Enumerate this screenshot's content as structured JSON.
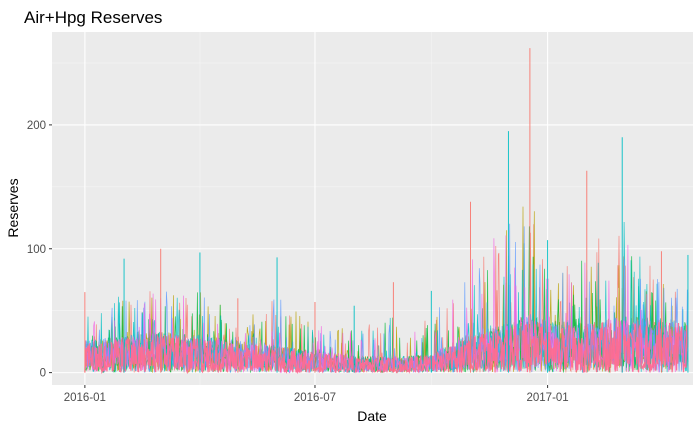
{
  "chart_data": {
    "type": "line",
    "title": "Air+Hpg Reserves",
    "xlabel": "Date",
    "ylabel": "Reserves",
    "x_range": [
      "2015-12-06",
      "2017-04-26"
    ],
    "ylim": [
      -10,
      275
    ],
    "x_ticks": [
      {
        "date": "2016-01-01",
        "label": "2016-01"
      },
      {
        "date": "2016-07-01",
        "label": "2016-07"
      },
      {
        "date": "2017-01-01",
        "label": "2017-01"
      }
    ],
    "y_ticks": [
      0,
      100,
      200
    ],
    "grid": true,
    "legend": "none",
    "series_colors": [
      "#F8766D",
      "#B79F00",
      "#00BA38",
      "#00BFC4",
      "#619CFF",
      "#F564E3",
      "#FF6C91"
    ],
    "envelope": [
      {
        "date": "2016-01-01",
        "median": 10,
        "high": 26,
        "peak": 65
      },
      {
        "date": "2016-02-01",
        "median": 12,
        "high": 30,
        "peak": 92
      },
      {
        "date": "2016-03-01",
        "median": 15,
        "high": 33,
        "peak": 100
      },
      {
        "date": "2016-04-01",
        "median": 13,
        "high": 30,
        "peak": 97
      },
      {
        "date": "2016-05-01",
        "median": 11,
        "high": 26,
        "peak": 60
      },
      {
        "date": "2016-06-01",
        "median": 9,
        "high": 22,
        "peak": 93
      },
      {
        "date": "2016-07-01",
        "median": 7,
        "high": 18,
        "peak": 57
      },
      {
        "date": "2016-08-01",
        "median": 6,
        "high": 14,
        "peak": 54
      },
      {
        "date": "2016-09-01",
        "median": 5,
        "high": 13,
        "peak": 73
      },
      {
        "date": "2016-10-01",
        "median": 6,
        "high": 15,
        "peak": 66
      },
      {
        "date": "2016-11-01",
        "median": 14,
        "high": 32,
        "peak": 138
      },
      {
        "date": "2016-12-01",
        "median": 18,
        "high": 40,
        "peak": 195
      },
      {
        "date": "2016-12-18",
        "median": 22,
        "high": 48,
        "peak": 262
      },
      {
        "date": "2017-01-01",
        "median": 19,
        "high": 42,
        "peak": 107
      },
      {
        "date": "2017-02-01",
        "median": 17,
        "high": 40,
        "peak": 163
      },
      {
        "date": "2017-03-01",
        "median": 21,
        "high": 46,
        "peak": 190
      },
      {
        "date": "2017-04-01",
        "median": 19,
        "high": 44,
        "peak": 98
      },
      {
        "date": "2017-04-22",
        "median": 18,
        "high": 42,
        "peak": 95
      }
    ]
  }
}
